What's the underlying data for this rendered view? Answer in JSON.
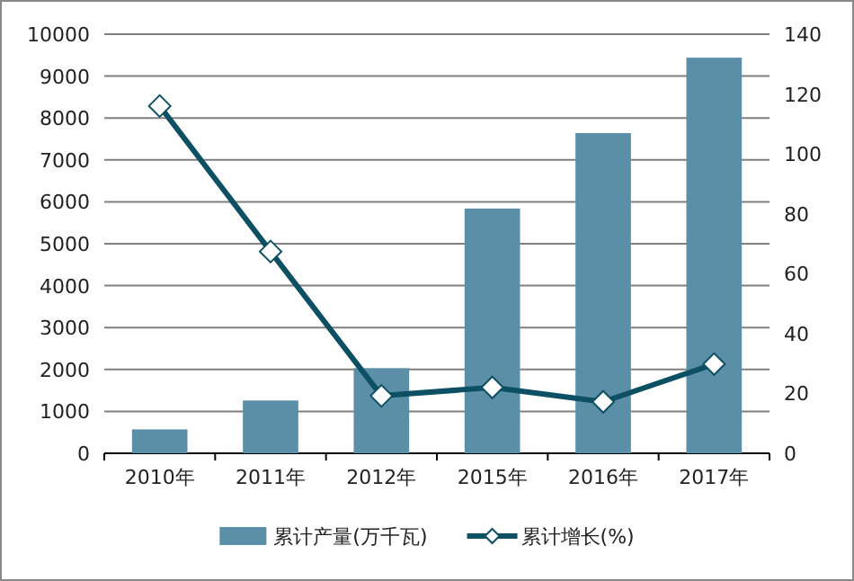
{
  "chart_data": {
    "type": "bar",
    "categories": [
      "2010年",
      "2011年",
      "2012年",
      "2015年",
      "2016年",
      "2017年"
    ],
    "series": [
      {
        "name": "累计产量(万千瓦)",
        "color": "#5b8fa8",
        "values": [
          570,
          1260,
          2030,
          5840,
          7640,
          9440
        ]
      },
      {
        "name": "累计增长(%)",
        "type": "line",
        "axis": "y2",
        "color": "#0d4f63",
        "marker": "diamond",
        "values": [
          116,
          67.4,
          19.2,
          22,
          17.2,
          29.8
        ]
      }
    ],
    "ylim": [
      0,
      10000
    ],
    "yticks": [
      0,
      1000,
      2000,
      3000,
      4000,
      5000,
      6000,
      7000,
      8000,
      9000,
      10000
    ],
    "y2lim": [
      0,
      140
    ],
    "y2ticks": [
      0,
      20,
      40,
      60,
      80,
      100,
      120,
      140
    ],
    "grid": "y",
    "legend": "bottom"
  }
}
